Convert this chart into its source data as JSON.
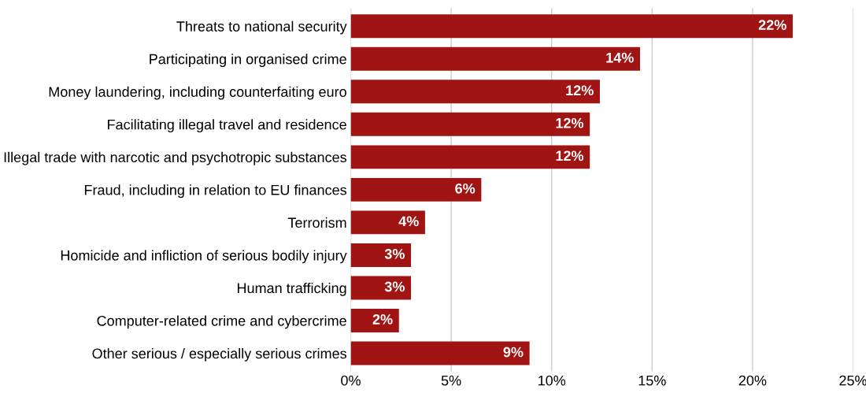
{
  "chart_data": {
    "type": "bar",
    "orientation": "horizontal",
    "categories": [
      "Threats to national security",
      "Participating in organised crime",
      "Money laundering, including counterfaiting euro",
      "Facilitating illegal travel and residence",
      "Illegal trade with narcotic and psychotropic substances",
      "Fraud, including in relation to EU finances",
      "Terrorism",
      "Homicide and infliction of serious bodily injury",
      "Human trafficking",
      "Computer-related crime and cybercrime",
      "Other serious / especially serious crimes"
    ],
    "values": [
      22.0,
      14.4,
      12.4,
      11.9,
      11.9,
      6.5,
      3.7,
      3.0,
      3.0,
      2.4,
      8.9
    ],
    "value_labels": [
      "22%",
      "14%",
      "12%",
      "12%",
      "12%",
      "6%",
      "4%",
      "3%",
      "3%",
      "2%",
      "9%"
    ],
    "color": "#a01414",
    "xlim": [
      0,
      25
    ],
    "xticks": [
      {
        "value": 0,
        "label": "0%"
      },
      {
        "value": 5,
        "label": "5%"
      },
      {
        "value": 10,
        "label": "10%"
      },
      {
        "value": 15,
        "label": "15%"
      },
      {
        "value": 20,
        "label": "20%"
      },
      {
        "value": 25,
        "label": "25%"
      }
    ],
    "grid": "x"
  }
}
